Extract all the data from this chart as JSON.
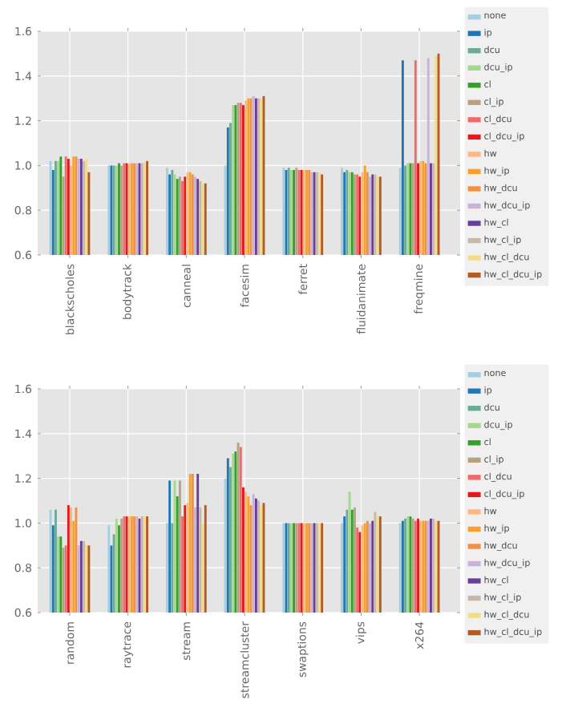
{
  "chart_data": [
    {
      "type": "bar",
      "categories": [
        "blackscholes",
        "bodytrack",
        "canneal",
        "facesim",
        "ferret",
        "fluidanimate",
        "freqmine"
      ],
      "ylim": [
        0.6,
        1.6
      ],
      "yticks": [
        {
          "value": 0.6,
          "label": "0.6"
        },
        {
          "value": 0.8,
          "label": "0.8"
        },
        {
          "value": 1.0,
          "label": "1.0"
        },
        {
          "value": 1.2,
          "label": "1.2"
        },
        {
          "value": 1.4,
          "label": "1.4"
        },
        {
          "value": 1.6,
          "label": "1.6"
        }
      ],
      "grid": true,
      "legend": "right",
      "series": [
        {
          "name": "none",
          "color": "#a6cee3",
          "values": [
            1.02,
            1.0,
            0.99,
            1.0,
            0.99,
            0.99,
            0.99
          ]
        },
        {
          "name": "ip",
          "color": "#1f78b4",
          "values": [
            0.98,
            1.0,
            0.96,
            1.17,
            0.98,
            0.97,
            1.47
          ]
        },
        {
          "name": "dcu",
          "color": "#6aab9c",
          "values": [
            1.02,
            1.0,
            0.98,
            1.19,
            0.99,
            0.98,
            1.0
          ]
        },
        {
          "name": "dcu_ip",
          "color": "#a3d98a",
          "values": [
            1.02,
            1.0,
            0.96,
            1.27,
            0.98,
            0.97,
            1.01
          ]
        },
        {
          "name": "cl",
          "color": "#33a02c",
          "values": [
            1.04,
            1.01,
            0.94,
            1.27,
            0.98,
            0.97,
            1.01
          ]
        },
        {
          "name": "cl_ip",
          "color": "#b8a182",
          "values": [
            0.95,
            1.0,
            0.95,
            1.28,
            0.99,
            0.96,
            1.01
          ]
        },
        {
          "name": "cl_dcu",
          "color": "#ef6b6b",
          "values": [
            1.04,
            1.01,
            0.93,
            1.28,
            0.98,
            0.96,
            1.47
          ]
        },
        {
          "name": "cl_dcu_ip",
          "color": "#e31a1c",
          "values": [
            1.03,
            1.01,
            0.95,
            1.27,
            0.98,
            0.95,
            1.01
          ]
        },
        {
          "name": "hw",
          "color": "#fdb97a",
          "values": [
            1.0,
            1.01,
            0.97,
            1.29,
            0.98,
            0.97,
            1.02
          ]
        },
        {
          "name": "hw_ip",
          "color": "#f7a12a",
          "values": [
            1.04,
            1.01,
            0.97,
            1.3,
            0.98,
            1.0,
            1.02
          ]
        },
        {
          "name": "hw_dcu",
          "color": "#f0914a",
          "values": [
            1.04,
            1.01,
            0.96,
            1.3,
            0.98,
            0.97,
            1.01
          ]
        },
        {
          "name": "hw_dcu_ip",
          "color": "#cab2d6",
          "values": [
            1.03,
            1.01,
            0.95,
            1.31,
            0.97,
            0.95,
            1.48
          ]
        },
        {
          "name": "hw_cl",
          "color": "#6a3d9a",
          "values": [
            1.03,
            1.01,
            0.94,
            1.3,
            0.97,
            0.96,
            1.01
          ]
        },
        {
          "name": "hw_cl_ip",
          "color": "#c9b8a6",
          "values": [
            1.02,
            1.01,
            0.93,
            1.3,
            0.97,
            0.96,
            1.01
          ]
        },
        {
          "name": "hw_cl_dcu",
          "color": "#f2dc8a",
          "values": [
            1.03,
            1.01,
            0.92,
            1.3,
            0.97,
            0.95,
            1.49
          ]
        },
        {
          "name": "hw_cl_dcu_ip",
          "color": "#b55a25",
          "values": [
            0.97,
            1.02,
            0.92,
            1.31,
            0.96,
            0.95,
            1.5
          ]
        }
      ]
    },
    {
      "type": "bar",
      "categories": [
        "random",
        "raytrace",
        "stream",
        "streamcluster",
        "swaptions",
        "vips",
        "x264"
      ],
      "ylim": [
        0.6,
        1.6
      ],
      "yticks": [
        {
          "value": 0.6,
          "label": "0.6"
        },
        {
          "value": 0.8,
          "label": "0.8"
        },
        {
          "value": 1.0,
          "label": "1.0"
        },
        {
          "value": 1.2,
          "label": "1.2"
        },
        {
          "value": 1.4,
          "label": "1.4"
        },
        {
          "value": 1.6,
          "label": "1.6"
        }
      ],
      "grid": true,
      "legend": "right",
      "series": [
        {
          "name": "none",
          "color": "#a6cee3",
          "values": [
            1.06,
            0.99,
            1.0,
            1.2,
            1.0,
            1.0,
            1.0
          ]
        },
        {
          "name": "ip",
          "color": "#1f78b4",
          "values": [
            0.99,
            0.9,
            1.19,
            1.29,
            1.0,
            1.03,
            1.01
          ]
        },
        {
          "name": "dcu",
          "color": "#6aab9c",
          "values": [
            1.06,
            0.95,
            1.0,
            1.25,
            1.0,
            1.06,
            1.02
          ]
        },
        {
          "name": "dcu_ip",
          "color": "#a3d98a",
          "values": [
            0.94,
            1.02,
            1.19,
            1.31,
            1.0,
            1.14,
            1.03
          ]
        },
        {
          "name": "cl",
          "color": "#33a02c",
          "values": [
            0.94,
            0.99,
            1.12,
            1.32,
            1.0,
            1.06,
            1.03
          ]
        },
        {
          "name": "cl_ip",
          "color": "#b8a182",
          "values": [
            0.89,
            1.02,
            1.19,
            1.36,
            1.0,
            1.07,
            1.02
          ]
        },
        {
          "name": "cl_dcu",
          "color": "#ef6b6b",
          "values": [
            0.9,
            1.03,
            1.03,
            1.34,
            1.0,
            0.98,
            1.01
          ]
        },
        {
          "name": "cl_dcu_ip",
          "color": "#e31a1c",
          "values": [
            1.08,
            1.03,
            1.08,
            1.16,
            1.0,
            0.96,
            1.02
          ]
        },
        {
          "name": "hw",
          "color": "#fdb97a",
          "values": [
            1.07,
            1.03,
            1.09,
            1.14,
            1.0,
            0.99,
            1.01
          ]
        },
        {
          "name": "hw_ip",
          "color": "#f7a12a",
          "values": [
            1.01,
            1.03,
            1.22,
            1.12,
            1.0,
            1.0,
            1.01
          ]
        },
        {
          "name": "hw_dcu",
          "color": "#f0914a",
          "values": [
            1.07,
            1.03,
            1.22,
            1.08,
            1.0,
            1.01,
            1.01
          ]
        },
        {
          "name": "hw_dcu_ip",
          "color": "#cab2d6",
          "values": [
            0.9,
            1.03,
            1.07,
            1.13,
            1.0,
            1.0,
            1.01
          ]
        },
        {
          "name": "hw_cl",
          "color": "#6a3d9a",
          "values": [
            0.92,
            1.02,
            1.22,
            1.11,
            1.0,
            1.01,
            1.02
          ]
        },
        {
          "name": "hw_cl_ip",
          "color": "#c9b8a6",
          "values": [
            0.92,
            1.03,
            1.07,
            1.1,
            1.0,
            1.05,
            1.02
          ]
        },
        {
          "name": "hw_cl_dcu",
          "color": "#f2dc8a",
          "values": [
            0.9,
            1.03,
            1.0,
            1.08,
            1.0,
            1.03,
            1.01
          ]
        },
        {
          "name": "hw_cl_dcu_ip",
          "color": "#b55a25",
          "values": [
            0.9,
            1.03,
            1.08,
            1.09,
            1.0,
            1.03,
            1.01
          ]
        }
      ]
    }
  ]
}
